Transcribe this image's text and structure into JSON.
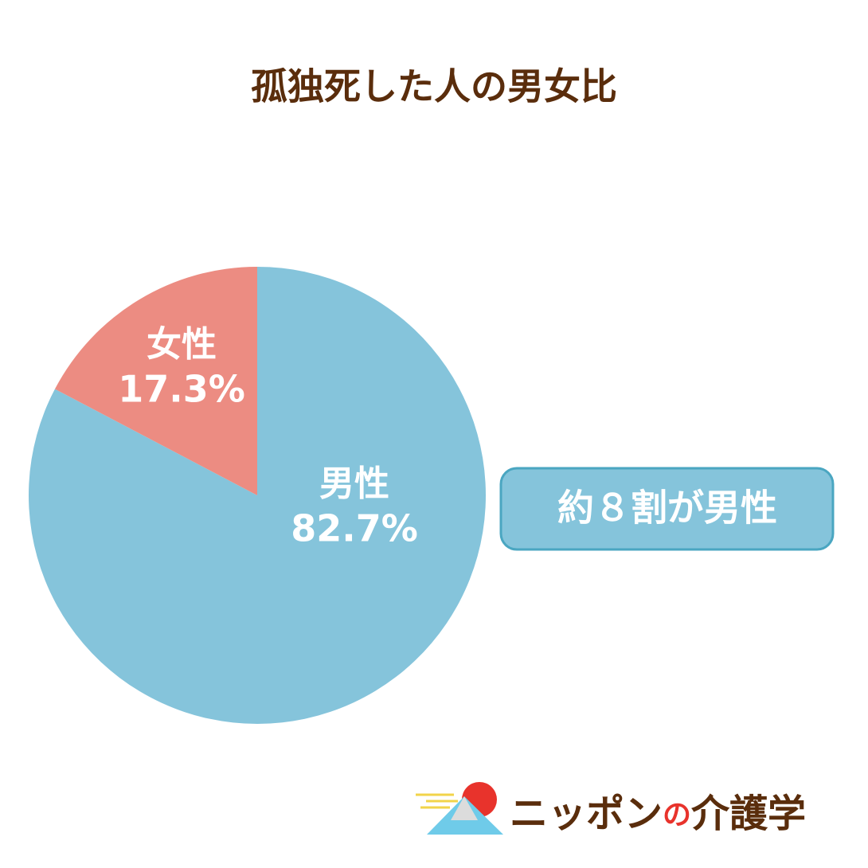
{
  "chart_data": {
    "type": "pie",
    "title": "孤独死した人の男女比",
    "categories": [
      "男性",
      "女性"
    ],
    "values": [
      82.7,
      17.3
    ],
    "value_labels": [
      "82.7%",
      "17.3%"
    ],
    "colors": [
      "#85c4db",
      "#ec8c82"
    ],
    "annotation": "約８割が男性"
  },
  "brand": [
    "ニッポン",
    "の",
    "介護学"
  ]
}
